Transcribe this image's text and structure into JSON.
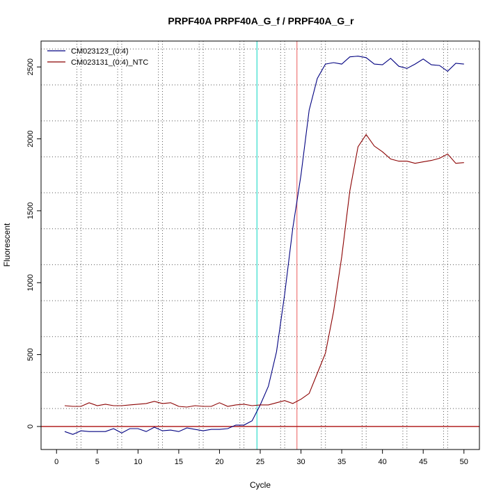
{
  "chart_data": {
    "type": "line",
    "title": "PRPF40A  PRPF40A_G_f / PRPF40A_G_r",
    "xlabel": "Cycle",
    "ylabel": "Fluorescent",
    "xlim": [
      -1.9,
      51.9
    ],
    "ylim": [
      -160,
      2680
    ],
    "x_ticks": [
      0,
      5,
      10,
      15,
      20,
      25,
      30,
      35,
      40,
      45,
      50
    ],
    "y_ticks": [
      0,
      500,
      1000,
      1500,
      2000,
      2500
    ],
    "grid": true,
    "grid_x": [
      2.5,
      7.5,
      12.5,
      17.5,
      22.5,
      27.5,
      32.5,
      37.5,
      42.5,
      47.5,
      3,
      8,
      13,
      18,
      23,
      28,
      33,
      38,
      43,
      48
    ],
    "grid_y": [
      125,
      375,
      625,
      875,
      1125,
      1375,
      1625,
      1875,
      2125,
      2375,
      2625
    ],
    "legend_position": "top-left",
    "threshold": 0,
    "vertical_markers": [
      {
        "x": 24.6,
        "color": "#40e0d0"
      },
      {
        "x": 29.5,
        "color": "#f08080"
      }
    ],
    "x": [
      1,
      2,
      3,
      4,
      5,
      6,
      7,
      8,
      9,
      10,
      11,
      12,
      13,
      14,
      15,
      16,
      17,
      18,
      19,
      20,
      21,
      22,
      23,
      24,
      25,
      26,
      27,
      28,
      29,
      30,
      31,
      32,
      33,
      34,
      35,
      36,
      37,
      38,
      39,
      40,
      41,
      42,
      43,
      44,
      45,
      46,
      47,
      48,
      49,
      50
    ],
    "series": [
      {
        "name": "CM023123_(0:4)",
        "color": "#000080",
        "values": [
          -35,
          -55,
          -30,
          -35,
          -35,
          -35,
          -15,
          -45,
          -15,
          -15,
          -35,
          -5,
          -30,
          -25,
          -35,
          -10,
          -20,
          -30,
          -20,
          -20,
          -15,
          10,
          10,
          40,
          150,
          280,
          520,
          920,
          1380,
          1750,
          2200,
          2420,
          2520,
          2530,
          2520,
          2570,
          2575,
          2565,
          2520,
          2515,
          2560,
          2505,
          2490,
          2520,
          2555,
          2515,
          2510,
          2470,
          2525,
          2520
        ]
      },
      {
        "name": "CM023131_(0:4)_NTC",
        "color": "#8b0000",
        "values": [
          145,
          140,
          140,
          165,
          145,
          155,
          145,
          145,
          150,
          155,
          160,
          175,
          160,
          165,
          140,
          135,
          145,
          140,
          140,
          165,
          140,
          150,
          155,
          145,
          150,
          150,
          165,
          180,
          160,
          190,
          230,
          370,
          510,
          800,
          1180,
          1640,
          1945,
          2030,
          1950,
          1910,
          1860,
          1845,
          1845,
          1830,
          1840,
          1850,
          1865,
          1895,
          1830,
          1835
        ]
      }
    ]
  }
}
